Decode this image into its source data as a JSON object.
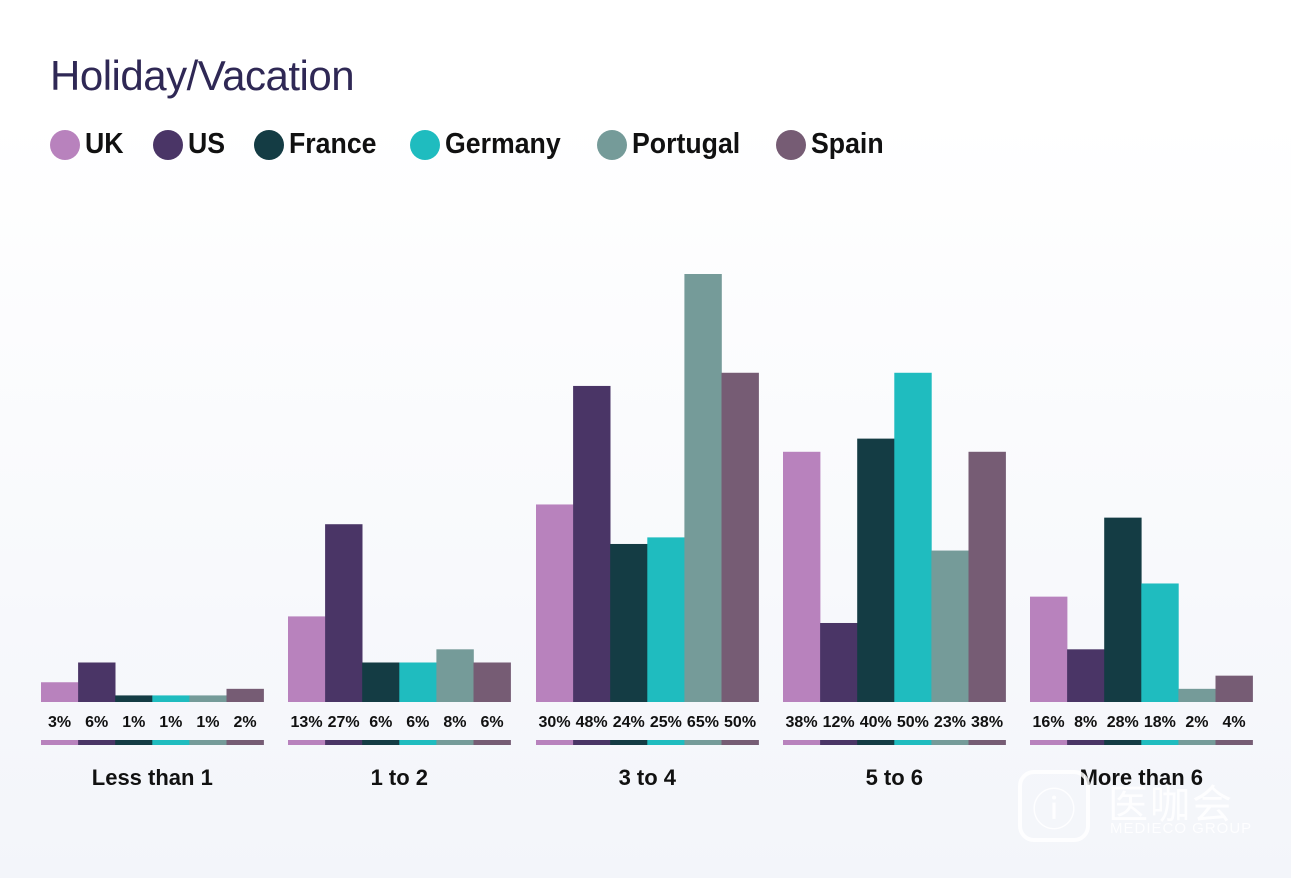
{
  "title": "Holiday/Vacation",
  "legend": [
    {
      "label": "UK",
      "color": "#b882bd"
    },
    {
      "label": "US",
      "color": "#4a3566"
    },
    {
      "label": "France",
      "color": "#143c44"
    },
    {
      "label": "Germany",
      "color": "#1fbcbf"
    },
    {
      "label": "Portugal",
      "color": "#759b99"
    },
    {
      "label": "Spain",
      "color": "#765c74"
    }
  ],
  "watermark": {
    "text": "医咖会",
    "sub": "MEDIECO GROUP"
  },
  "chart_data": {
    "type": "bar",
    "title": "Holiday/Vacation",
    "categories": [
      "Less than 1",
      "1 to 2",
      "3 to 4",
      "5 to 6",
      "More than 6"
    ],
    "series": [
      {
        "name": "UK",
        "values": [
          3,
          13,
          30,
          38,
          16
        ],
        "labels": [
          "3%",
          "13%",
          "30%",
          "38%",
          "16%"
        ]
      },
      {
        "name": "US",
        "values": [
          6,
          27,
          48,
          12,
          8
        ],
        "labels": [
          "6%",
          "27%",
          "48%",
          "12%",
          "8%"
        ]
      },
      {
        "name": "France",
        "values": [
          1,
          6,
          24,
          40,
          28
        ],
        "labels": [
          "1%",
          "6%",
          "24%",
          "40%",
          "28%"
        ]
      },
      {
        "name": "Germany",
        "values": [
          1,
          6,
          25,
          50,
          18
        ],
        "labels": [
          "1%",
          "6%",
          "25%",
          "50%",
          "18%"
        ]
      },
      {
        "name": "Portugal",
        "values": [
          1,
          8,
          65,
          23,
          2
        ],
        "labels": [
          "1%",
          "8%",
          "65%",
          "23%",
          "2%"
        ]
      },
      {
        "name": "Spain",
        "values": [
          2,
          6,
          50,
          38,
          4
        ],
        "labels": [
          "2%",
          "6%",
          "50%",
          "38%",
          "4%"
        ]
      }
    ],
    "ylim": [
      0,
      65
    ],
    "grid": false,
    "legend_position": "top-left",
    "xlabel": "",
    "ylabel": ""
  }
}
